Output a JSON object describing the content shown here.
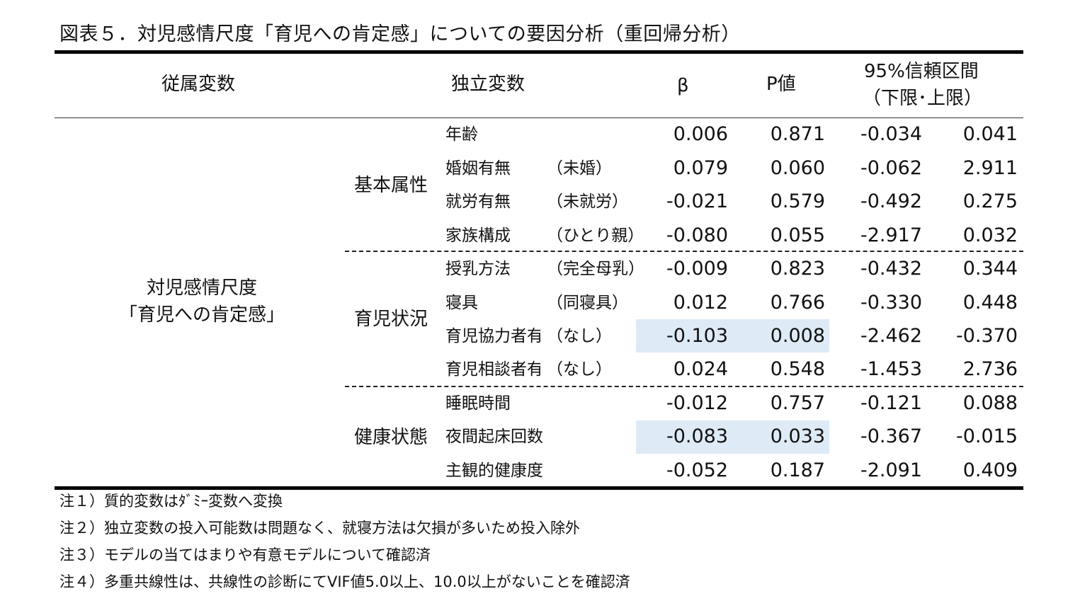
{
  "title": "図表５．対児感情尺度「育児への肯定感」についての要因分析（重回帰分析）",
  "header": {
    "dependent": "従属変数",
    "independent": "独立変数",
    "beta": "β",
    "p": "P値",
    "ci_line1": "95%信頼区間",
    "ci_line2": "（下限･上限）"
  },
  "dependent_variable": {
    "line1": "対児感情尺度",
    "line2": "「育児への肯定感」"
  },
  "groups": [
    "基本属性",
    "育児状況",
    "健康状態"
  ],
  "rows": [
    {
      "name": "年齢",
      "ref": "",
      "beta": "0.006",
      "p": "0.871",
      "lower": "-0.034",
      "upper": "0.041"
    },
    {
      "name": "婚姻有無",
      "ref": "（未婚）",
      "beta": "0.079",
      "p": "0.060",
      "lower": "-0.062",
      "upper": "2.911"
    },
    {
      "name": "就労有無",
      "ref": "（未就労）",
      "beta": "-0.021",
      "p": "0.579",
      "lower": "-0.492",
      "upper": "0.275"
    },
    {
      "name": "家族構成",
      "ref": "（ひとり親）",
      "beta": "-0.080",
      "p": "0.055",
      "lower": "-2.917",
      "upper": "0.032"
    },
    {
      "name": "授乳方法",
      "ref": "（完全母乳）",
      "beta": "-0.009",
      "p": "0.823",
      "lower": "-0.432",
      "upper": "0.344"
    },
    {
      "name": "寝具",
      "ref": "（同寝具）",
      "beta": "0.012",
      "p": "0.766",
      "lower": "-0.330",
      "upper": "0.448"
    },
    {
      "name": "育児協力者有",
      "ref": "（なし）",
      "beta": "-0.103",
      "p": "0.008",
      "lower": "-2.462",
      "upper": "-0.370"
    },
    {
      "name": "育児相談者有",
      "ref": "（なし）",
      "beta": "0.024",
      "p": "0.548",
      "lower": "-1.453",
      "upper": "2.736"
    },
    {
      "name": "睡眠時間",
      "ref": "",
      "beta": "-0.012",
      "p": "0.757",
      "lower": "-0.121",
      "upper": "0.088"
    },
    {
      "name": "夜間起床回数",
      "ref": "",
      "beta": "-0.083",
      "p": "0.033",
      "lower": "-0.367",
      "upper": "-0.015"
    },
    {
      "name": "主観的健康度",
      "ref": "",
      "beta": "-0.052",
      "p": "0.187",
      "lower": "-2.091",
      "upper": "0.409"
    }
  ],
  "highlight_color": "#deeaf6",
  "notes": [
    "注１）質的変数はﾀﾞﾐｰ変数へ変換",
    "注２）独立変数の投入可能数は問題なく、就寝方法は欠損が多いため投入除外",
    "注３）モデルの当てはまりや有意モデルについて確認済",
    "注４）多重共線性は、共線性の診断にてVIF値5.0以上、10.0以上がないことを確認済"
  ]
}
